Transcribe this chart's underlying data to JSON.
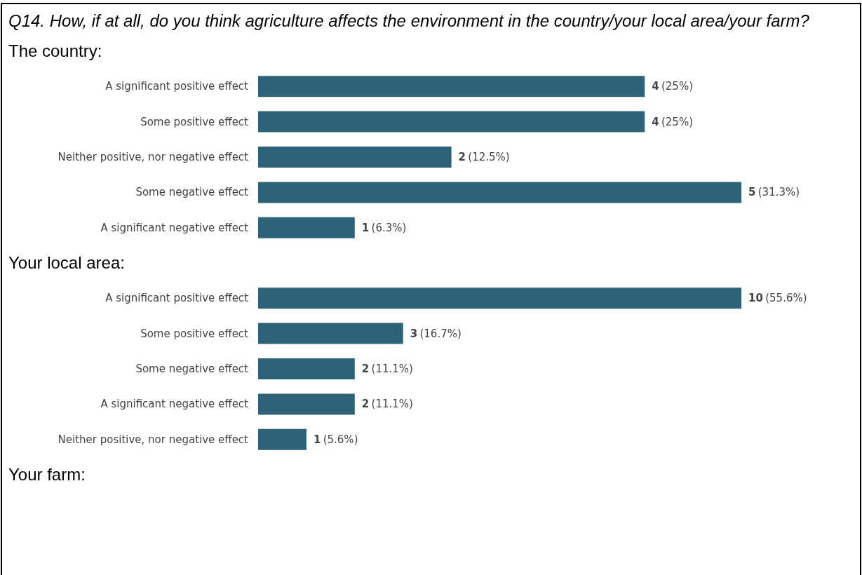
{
  "chart_data": [
    {
      "type": "bar",
      "orientation": "horizontal",
      "title": "Q14. How, if at all, do you think agriculture affects the environment in the country/your local area/your farm?",
      "subtitle": "The country:",
      "categories": [
        "A significant positive effect",
        "Some positive effect",
        "Neither positive, nor negative effect",
        "Some negative effect",
        "A significant negative effect"
      ],
      "values": [
        4,
        4,
        2,
        5,
        1
      ],
      "value_labels": [
        "4 (25%)",
        "4 (25%)",
        "2 (12.5%)",
        "5 (31.3%)",
        "1 (6.3%)"
      ],
      "color": "#2e6278"
    },
    {
      "type": "bar",
      "orientation": "horizontal",
      "title": "Your local area:",
      "categories": [
        "A significant positive effect",
        "Some positive effect",
        "Some negative effect",
        "A significant negative effect",
        "Neither positive, nor negative effect"
      ],
      "values": [
        10,
        3,
        2,
        2,
        1
      ],
      "value_labels": [
        "10 (55.6%)",
        "3 (16.7%)",
        "2 (11.1%)",
        "2 (11.1%)",
        "1 (5.6%)"
      ],
      "color": "#2e6278"
    },
    {
      "type": "other",
      "title": "Your farm:"
    }
  ]
}
